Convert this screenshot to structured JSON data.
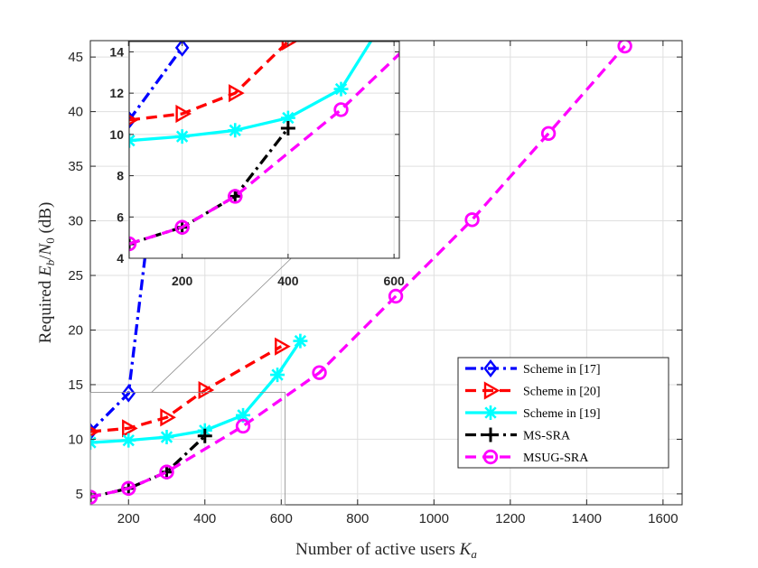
{
  "chart_data": {
    "type": "line",
    "xlabel": "Number of active users K_a",
    "xlabel_parts": {
      "prefix": "Number of active users ",
      "var": "K",
      "sub": "a"
    },
    "ylabel_parts": {
      "prefix": "Required ",
      "e": "E",
      "e_sub": "b",
      "slash": "/",
      "n": "N",
      "n_sub": "0",
      "suffix": " (dB)"
    },
    "xlim": [
      100,
      1650
    ],
    "ylim": [
      4,
      46.5
    ],
    "xticks": [
      200,
      400,
      600,
      800,
      1000,
      1200,
      1400,
      1600
    ],
    "yticks": [
      5,
      10,
      15,
      20,
      25,
      30,
      35,
      40,
      45
    ],
    "grid": true,
    "legend_position": "lower-right",
    "series": [
      {
        "name": "Scheme in [17]",
        "color": "#0000ff",
        "dash": "dashdot",
        "marker": "diamond",
        "x": [
          100,
          200,
          310
        ],
        "y": [
          10.7,
          14.2,
          46
        ]
      },
      {
        "name": "Scheme in [20]",
        "color": "#ff0000",
        "dash": "dash",
        "marker": "triangle-right",
        "x": [
          100,
          200,
          300,
          400,
          600
        ],
        "y": [
          10.7,
          11.0,
          12.0,
          14.5,
          18.5
        ]
      },
      {
        "name": "Scheme in [19]",
        "color": "#00ffff",
        "dash": "solid",
        "marker": "asterisk",
        "x": [
          100,
          200,
          300,
          400,
          500,
          590,
          650
        ],
        "y": [
          9.7,
          9.9,
          10.2,
          10.8,
          12.2,
          15.9,
          19.0
        ]
      },
      {
        "name": "MS-SRA",
        "color": "#000000",
        "dash": "dashdot",
        "marker": "plus",
        "x": [
          100,
          200,
          300,
          400
        ],
        "y": [
          4.7,
          5.5,
          7.0,
          10.3
        ]
      },
      {
        "name": "MSUG-SRA",
        "color": "#ff00ff",
        "dash": "dash",
        "marker": "circle",
        "x": [
          100,
          200,
          300,
          500,
          700,
          900,
          1100,
          1300,
          1500
        ],
        "y": [
          4.7,
          5.5,
          7.0,
          11.2,
          16.1,
          23.1,
          30.1,
          38.0,
          46.0
        ]
      }
    ],
    "inset": {
      "xlim": [
        100,
        610
      ],
      "ylim": [
        4,
        14.5
      ],
      "xticks": [
        200,
        400,
        600
      ],
      "yticks": [
        4,
        6,
        8,
        10,
        12,
        14
      ],
      "source_region": {
        "x": [
          100,
          610
        ],
        "y": [
          4,
          14.3
        ]
      },
      "series": [
        {
          "name": "Scheme in [17]",
          "x": [
            100,
            200
          ],
          "y": [
            10.7,
            14.2
          ]
        },
        {
          "name": "Scheme in [20]",
          "x": [
            100,
            200,
            300,
            400
          ],
          "y": [
            10.7,
            11.0,
            12.0,
            14.5
          ]
        },
        {
          "name": "Scheme in [19]",
          "x": [
            100,
            200,
            300,
            400,
            500,
            590
          ],
          "y": [
            9.7,
            9.9,
            10.2,
            10.8,
            12.2,
            15.9
          ]
        },
        {
          "name": "MS-SRA",
          "x": [
            100,
            200,
            300,
            400
          ],
          "y": [
            4.7,
            5.5,
            7.0,
            10.3
          ]
        },
        {
          "name": "MSUG-SRA",
          "x": [
            100,
            200,
            300,
            500,
            700
          ],
          "y": [
            4.7,
            5.5,
            7.0,
            11.2,
            16.1
          ]
        }
      ]
    }
  }
}
